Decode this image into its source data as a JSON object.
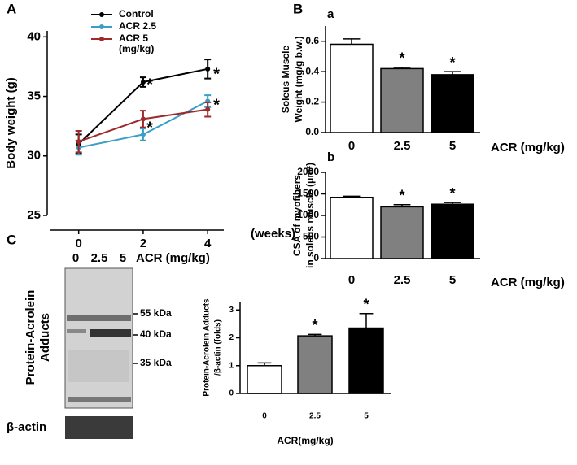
{
  "chart_data": [
    {
      "type": "line",
      "panel": "A",
      "ylabel": "Body weight (g)",
      "xlabel": "(weeks)",
      "x": [
        0,
        2,
        4
      ],
      "xlim": [
        -0.9,
        4.5
      ],
      "xticks": [
        0,
        2,
        4
      ],
      "ylim": [
        25,
        40.5
      ],
      "yticks": [
        25,
        30,
        35,
        40
      ],
      "series": [
        {
          "name": "Control",
          "color": "#000000",
          "values": [
            31.0,
            36.2,
            37.3
          ],
          "errors": [
            0.8,
            0.4,
            0.8
          ]
        },
        {
          "name": "ACR 2.5",
          "color": "#3a9fc6",
          "values": [
            30.7,
            31.8,
            34.6
          ],
          "errors": [
            0.6,
            0.5,
            0.5
          ]
        },
        {
          "name": "ACR 5",
          "color": "#9e2a2b",
          "values": [
            31.2,
            33.1,
            33.9
          ],
          "errors": [
            0.9,
            0.7,
            0.6
          ]
        }
      ],
      "legend_note": "(mg/kg)",
      "annotations": [
        "*",
        "*",
        "*",
        "*"
      ]
    },
    {
      "type": "bar",
      "panel": "B",
      "subpanel": "a",
      "ylabel": [
        "Soleus Muscle",
        "Weight (mg/g b.w.)"
      ],
      "xlabel": "ACR (mg/kg)",
      "categories": [
        "0",
        "2.5",
        "5"
      ],
      "values": [
        0.58,
        0.42,
        0.38
      ],
      "errors": [
        0.035,
        0.008,
        0.02
      ],
      "colors": [
        "#ffffff",
        "#808080",
        "#000000"
      ],
      "ylim": [
        0,
        0.7
      ],
      "yticks": [
        {
          "value": 0,
          "label": "0.0"
        },
        0.2,
        0.4,
        0.6
      ],
      "annotations": [
        "*",
        "*"
      ]
    },
    {
      "type": "bar",
      "subpanel": "b",
      "ylabel": [
        "CSA of myofibers",
        "in soleus muscle (μm²)"
      ],
      "xlabel": "ACR (mg/kg)",
      "categories": [
        "0",
        "2.5",
        "5"
      ],
      "values": [
        1420,
        1200,
        1260
      ],
      "errors": [
        25,
        50,
        40
      ],
      "colors": [
        "#ffffff",
        "#808080",
        "#000000"
      ],
      "ylim": [
        0,
        2000
      ],
      "yticks": [
        0,
        500,
        1000,
        1500,
        2000
      ],
      "annotations": [
        "*",
        "*"
      ]
    },
    {
      "type": "bar",
      "ylabel": [
        "Protein-Acrolein Adducts",
        "/β-actin (folds)"
      ],
      "xlabel": "ACR(mg/kg)",
      "categories": [
        "0",
        "2.5",
        "5"
      ],
      "values": [
        1.0,
        2.07,
        2.35
      ],
      "errors": [
        0.1,
        0.05,
        0.52
      ],
      "colors": [
        "#ffffff",
        "#808080",
        "#000000"
      ],
      "ylim": [
        0,
        3.3
      ],
      "yticks": [
        0,
        1,
        2,
        3
      ],
      "annotations": [
        "*",
        "*"
      ]
    }
  ],
  "blot": {
    "panel": "C",
    "lanes": [
      "0",
      "2.5",
      "5"
    ],
    "lane_title": "ACR (mg/kg)",
    "markers": [
      "55 kDa",
      "40 kDa",
      "35 kDa"
    ],
    "ylabel": [
      "Protein-Acrolein",
      "Adducts"
    ],
    "loading": "β-actin"
  }
}
